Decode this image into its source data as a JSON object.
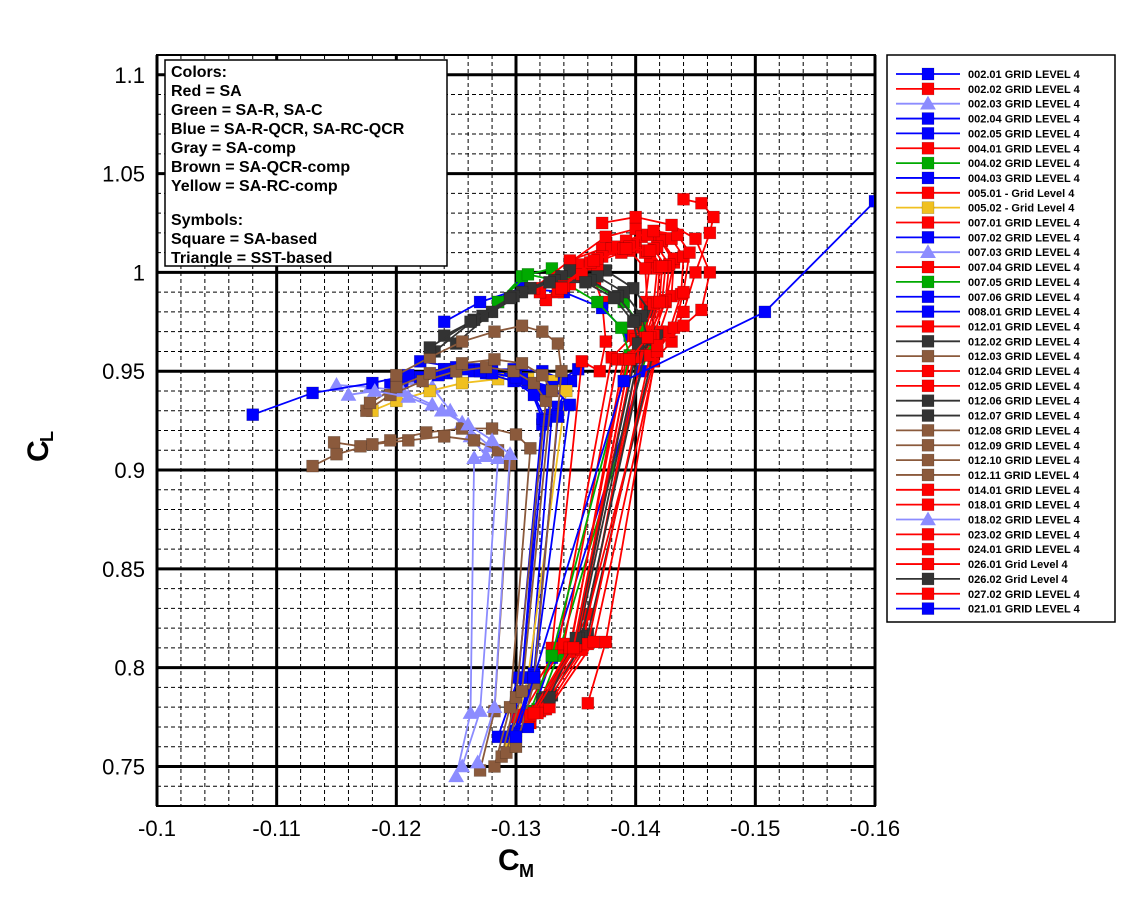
{
  "chart_data": {
    "type": "line",
    "xlabel": "C",
    "xlabel_sub": "M",
    "ylabel": "C",
    "ylabel_sub": "L",
    "xlim": [
      -0.1,
      -0.16
    ],
    "ylim": [
      0.73,
      1.11
    ],
    "x_reversed": true,
    "grid": true,
    "x_ticks": [
      -0.1,
      -0.11,
      -0.12,
      -0.13,
      -0.14,
      -0.15,
      -0.16
    ],
    "x_tick_labels": [
      "-0.1",
      "-0.11",
      "-0.12",
      "-0.13",
      "-0.14",
      "-0.15",
      "-0.16"
    ],
    "y_ticks": [
      0.75,
      0.8,
      0.85,
      0.9,
      0.95,
      1.0,
      1.05,
      1.1
    ],
    "y_tick_labels": [
      "0.75",
      "0.8",
      "0.85",
      "0.9",
      "0.95",
      "1",
      "1.05",
      "1.1"
    ],
    "legend_position": "right",
    "notes": [
      "Colors:",
      "Red = SA",
      "Green = SA-R, SA-C",
      "Blue = SA-R-QCR, SA-RC-QCR",
      "Gray = SA-comp",
      "Brown = SA-QCR-comp",
      "Yellow = SA-RC-comp",
      "",
      "Symbols:",
      "Square = SA-based",
      "Triangle = SST-based"
    ],
    "series": [
      {
        "name": "002.01 GRID LEVEL 4",
        "color": "#0000ff",
        "marker": "square",
        "x": [
          -0.1295,
          -0.1305,
          -0.1322,
          -0.1335,
          -0.1346,
          -0.1352,
          -0.1338,
          -0.1322,
          -0.1298,
          -0.127,
          -0.124
        ],
        "y": [
          0.765,
          0.795,
          0.923,
          0.932,
          0.945,
          0.951,
          0.946,
          0.95,
          0.951,
          0.951,
          0.951
        ]
      },
      {
        "name": "002.02 GRID LEVEL 4",
        "color": "#ff0000",
        "marker": "square",
        "x": [
          -0.1312,
          -0.133,
          -0.1355,
          -0.137,
          -0.1375,
          -0.1372,
          -0.1366,
          -0.1353,
          -0.134,
          -0.1325
        ],
        "y": [
          0.772,
          0.81,
          0.955,
          0.95,
          0.965,
          0.985,
          0.996,
          0.999,
          0.996,
          0.986
        ]
      },
      {
        "name": "002.03 GRID LEVEL 4",
        "color": "#8c8cff",
        "marker": "triangle",
        "x": [
          -0.125,
          -0.1262,
          -0.1265,
          -0.1275,
          -0.1262,
          -0.1245,
          -0.123,
          -0.1215,
          -0.1198
        ],
        "y": [
          0.745,
          0.777,
          0.906,
          0.907,
          0.917,
          0.93,
          0.942,
          0.946,
          0.944
        ]
      },
      {
        "name": "002.04 GRID LEVEL 4",
        "color": "#0000ff",
        "marker": "square",
        "x": [
          -0.1285,
          -0.1302,
          -0.1322,
          -0.131,
          -0.1298,
          -0.128,
          -0.126,
          -0.1242
        ],
        "y": [
          0.765,
          0.795,
          0.926,
          0.944,
          0.948,
          0.95,
          0.951,
          0.949
        ]
      },
      {
        "name": "002.05 GRID LEVEL 4",
        "color": "#0000ff",
        "marker": "square",
        "x": [
          -0.13,
          -0.1312,
          -0.133,
          -0.1322,
          -0.13,
          -0.1265,
          -0.1235,
          -0.1205
        ],
        "y": [
          0.768,
          0.795,
          0.928,
          0.94,
          0.947,
          0.95,
          0.948,
          0.944
        ]
      },
      {
        "name": "004.01 GRID LEVEL 4",
        "color": "#ff0000",
        "marker": "square",
        "x": [
          -0.1322,
          -0.136,
          -0.1415,
          -0.143,
          -0.144,
          -0.145,
          -0.1462,
          -0.1465,
          -0.1455,
          -0.144
        ],
        "y": [
          0.779,
          0.827,
          0.955,
          0.965,
          0.98,
          1.0,
          1.02,
          1.028,
          1.035,
          1.037
        ]
      },
      {
        "name": "004.02 GRID LEVEL 4",
        "color": "#00aa00",
        "marker": "square",
        "x": [
          -0.1318,
          -0.1335,
          -0.141,
          -0.1405,
          -0.139,
          -0.136,
          -0.133,
          -0.1305,
          -0.1285
        ],
        "y": [
          0.779,
          0.806,
          0.96,
          0.972,
          0.985,
          0.996,
          1.002,
          0.998,
          0.985
        ]
      },
      {
        "name": "004.03 GRID LEVEL 4",
        "color": "#0000ff",
        "marker": "square",
        "x": [
          -0.131,
          -0.133,
          -0.1405,
          -0.1395,
          -0.1372,
          -0.134,
          -0.1305,
          -0.127,
          -0.124
        ],
        "y": [
          0.77,
          0.805,
          0.95,
          0.968,
          0.982,
          0.99,
          0.992,
          0.985,
          0.975
        ]
      },
      {
        "name": "005.01 - Grid Level 4",
        "color": "#ff0000",
        "marker": "square",
        "x": [
          -0.1315,
          -0.135,
          -0.1395,
          -0.1412,
          -0.1425,
          -0.1432,
          -0.142,
          -0.14,
          -0.1375,
          -0.1345
        ],
        "y": [
          0.778,
          0.81,
          0.957,
          0.97,
          0.985,
          1.005,
          1.017,
          1.022,
          1.018,
          1.005
        ]
      },
      {
        "name": "005.02 - Grid Level 4",
        "color": "#f0c020",
        "marker": "square",
        "x": [
          -0.1295,
          -0.131,
          -0.1342,
          -0.133,
          -0.131,
          -0.1285,
          -0.1255,
          -0.1228,
          -0.12,
          -0.118
        ],
        "y": [
          0.76,
          0.795,
          0.94,
          0.945,
          0.946,
          0.946,
          0.944,
          0.94,
          0.935,
          0.93
        ]
      },
      {
        "name": "007.01 GRID LEVEL 4",
        "color": "#ff0000",
        "marker": "square",
        "x": [
          -0.13,
          -0.1335,
          -0.138,
          -0.1398,
          -0.1408,
          -0.1412,
          -0.14,
          -0.138,
          -0.1352,
          -0.132
        ],
        "y": [
          0.775,
          0.81,
          0.957,
          0.968,
          0.985,
          1.005,
          1.013,
          1.012,
          1.004,
          0.99
        ]
      },
      {
        "name": "007.02 GRID LEVEL 4",
        "color": "#0000ff",
        "marker": "square",
        "x": [
          -0.1292,
          -0.1305,
          -0.1325,
          -0.1315,
          -0.1298,
          -0.1275,
          -0.1248,
          -0.122,
          -0.1195
        ],
        "y": [
          0.765,
          0.795,
          0.925,
          0.938,
          0.945,
          0.949,
          0.95,
          0.947,
          0.943
        ]
      },
      {
        "name": "007.03 GRID LEVEL 4",
        "color": "#8c8cff",
        "marker": "triangle",
        "x": [
          -0.1255,
          -0.127,
          -0.1285,
          -0.1278,
          -0.1255,
          -0.123,
          -0.1205,
          -0.1178,
          -0.115
        ],
        "y": [
          0.75,
          0.778,
          0.906,
          0.912,
          0.924,
          0.933,
          0.94,
          0.942,
          0.943
        ]
      },
      {
        "name": "007.04 GRID LEVEL 4",
        "color": "#ff0000",
        "marker": "square",
        "x": [
          -0.1305,
          -0.134,
          -0.1385,
          -0.14,
          -0.141,
          -0.1408,
          -0.1395,
          -0.1372,
          -0.1345,
          -0.1315
        ],
        "y": [
          0.776,
          0.812,
          0.956,
          0.966,
          0.982,
          1.002,
          1.011,
          1.012,
          1.006,
          0.992
        ]
      },
      {
        "name": "007.05 GRID LEVEL 4",
        "color": "#00aa00",
        "marker": "square",
        "x": [
          -0.1312,
          -0.133,
          -0.1395,
          -0.1388,
          -0.1368,
          -0.134,
          -0.131,
          -0.1285
        ],
        "y": [
          0.778,
          0.806,
          0.958,
          0.972,
          0.985,
          0.995,
          0.999,
          0.985
        ]
      },
      {
        "name": "007.06 GRID LEVEL 4",
        "color": "#0000ff",
        "marker": "square",
        "x": [
          -0.1298,
          -0.1315,
          -0.1335,
          -0.1325,
          -0.1305,
          -0.128,
          -0.125,
          -0.122
        ],
        "y": [
          0.767,
          0.797,
          0.927,
          0.94,
          0.946,
          0.949,
          0.952,
          0.955
        ]
      },
      {
        "name": "008.01 GRID LEVEL 4",
        "color": "#0000ff",
        "marker": "square",
        "x": [
          -0.13,
          -0.1315,
          -0.1345,
          -0.133,
          -0.13,
          -0.127,
          -0.124,
          -0.121,
          -0.118,
          -0.113,
          -0.108
        ],
        "y": [
          0.766,
          0.796,
          0.933,
          0.942,
          0.947,
          0.95,
          0.951,
          0.948,
          0.944,
          0.939,
          0.928
        ]
      },
      {
        "name": "012.01 GRID LEVEL 4",
        "color": "#ff0000",
        "marker": "square",
        "x": [
          -0.1318,
          -0.1355,
          -0.1405,
          -0.142,
          -0.143,
          -0.1432,
          -0.1422,
          -0.1405,
          -0.138,
          -0.1352
        ],
        "y": [
          0.778,
          0.812,
          0.958,
          0.97,
          0.988,
          1.007,
          1.016,
          1.018,
          1.012,
          0.998
        ]
      },
      {
        "name": "012.02 GRID LEVEL 4",
        "color": "#333333",
        "marker": "square",
        "x": [
          -0.133,
          -0.136,
          -0.1418,
          -0.1412,
          -0.1398,
          -0.1375,
          -0.1345,
          -0.1312,
          -0.128,
          -0.125
        ],
        "y": [
          0.786,
          0.817,
          0.968,
          0.98,
          0.992,
          1.001,
          1.001,
          0.992,
          0.98,
          0.964
        ]
      },
      {
        "name": "012.03 GRID LEVEL 4",
        "color": "#8b5a3c",
        "marker": "square",
        "x": [
          -0.1282,
          -0.1295,
          -0.1312,
          -0.13,
          -0.128,
          -0.1255,
          -0.1225,
          -0.1195,
          -0.117,
          -0.1148
        ],
        "y": [
          0.75,
          0.78,
          0.911,
          0.918,
          0.921,
          0.921,
          0.919,
          0.915,
          0.912,
          0.914
        ]
      },
      {
        "name": "012.04 GRID LEVEL 4",
        "color": "#ff0000",
        "marker": "square",
        "x": [
          -0.132,
          -0.1355,
          -0.1402,
          -0.1415,
          -0.1425,
          -0.1428,
          -0.1418,
          -0.1398,
          -0.1372,
          -0.1345
        ],
        "y": [
          0.778,
          0.809,
          0.957,
          0.968,
          0.986,
          1.004,
          1.013,
          1.014,
          1.008,
          0.994
        ]
      },
      {
        "name": "012.05 GRID LEVEL 4",
        "color": "#ff0000",
        "marker": "square",
        "x": [
          -0.131,
          -0.1345,
          -0.139,
          -0.1405,
          -0.1415,
          -0.1418,
          -0.1408,
          -0.1388,
          -0.1362,
          -0.1335
        ],
        "y": [
          0.775,
          0.808,
          0.956,
          0.966,
          0.984,
          1.002,
          1.01,
          1.01,
          1.004,
          0.99
        ]
      },
      {
        "name": "012.06 GRID LEVEL 4",
        "color": "#333333",
        "marker": "square",
        "x": [
          -0.1325,
          -0.1355,
          -0.141,
          -0.1405,
          -0.139,
          -0.1368,
          -0.1338,
          -0.1305,
          -0.1272,
          -0.124
        ],
        "y": [
          0.785,
          0.816,
          0.966,
          0.978,
          0.99,
          0.998,
          0.998,
          0.99,
          0.978,
          0.968
        ]
      },
      {
        "name": "012.07 GRID LEVEL 4",
        "color": "#333333",
        "marker": "square",
        "x": [
          -0.1322,
          -0.1352,
          -0.1405,
          -0.14,
          -0.1385,
          -0.1362,
          -0.1332,
          -0.1298,
          -0.1265,
          -0.1232
        ],
        "y": [
          0.784,
          0.815,
          0.965,
          0.976,
          0.988,
          0.996,
          0.996,
          0.988,
          0.976,
          0.96
        ]
      },
      {
        "name": "012.08 GRID LEVEL 4",
        "color": "#8b5a3c",
        "marker": "square",
        "x": [
          -0.127,
          -0.1282,
          -0.1295,
          -0.1285,
          -0.1265,
          -0.124,
          -0.121,
          -0.118,
          -0.115,
          -0.113
        ],
        "y": [
          0.748,
          0.778,
          0.903,
          0.91,
          0.915,
          0.917,
          0.915,
          0.913,
          0.908,
          0.902
        ]
      },
      {
        "name": "012.09 GRID LEVEL 4",
        "color": "#8b5a3c",
        "marker": "square",
        "x": [
          -0.1288,
          -0.13,
          -0.1325,
          -0.1315,
          -0.1298,
          -0.1275,
          -0.125,
          -0.1222,
          -0.1195,
          -0.1175
        ],
        "y": [
          0.755,
          0.785,
          0.935,
          0.944,
          0.95,
          0.952,
          0.95,
          0.945,
          0.938,
          0.93
        ]
      },
      {
        "name": "012.10 GRID LEVEL 4",
        "color": "#8b5a3c",
        "marker": "square",
        "x": [
          -0.1292,
          -0.1305,
          -0.133,
          -0.1322,
          -0.1305,
          -0.1282,
          -0.1255,
          -0.1228,
          -0.12,
          -0.1178
        ],
        "y": [
          0.757,
          0.788,
          0.94,
          0.948,
          0.954,
          0.956,
          0.954,
          0.949,
          0.942,
          0.934
        ]
      },
      {
        "name": "012.11 GRID LEVEL 4",
        "color": "#8b5a3c",
        "marker": "square",
        "x": [
          -0.13,
          -0.1315,
          -0.1338,
          -0.1335,
          -0.1322,
          -0.1305,
          -0.1282,
          -0.1255,
          -0.1228,
          -0.12
        ],
        "y": [
          0.76,
          0.792,
          0.95,
          0.964,
          0.97,
          0.973,
          0.97,
          0.965,
          0.957,
          0.948
        ]
      },
      {
        "name": "014.01 GRID LEVEL 4",
        "color": "#ff0000",
        "marker": "square",
        "x": [
          -0.1325,
          -0.136,
          -0.1412,
          -0.1428,
          -0.1438,
          -0.144,
          -0.143,
          -0.141,
          -0.1385,
          -0.1355
        ],
        "y": [
          0.779,
          0.812,
          0.958,
          0.97,
          0.989,
          1.008,
          1.017,
          1.019,
          1.013,
          0.999
        ]
      },
      {
        "name": "018.01 GRID LEVEL 4",
        "color": "#ff0000",
        "marker": "square",
        "x": [
          -0.1328,
          -0.1365,
          -0.1418,
          -0.1432,
          -0.144,
          -0.1445,
          -0.1435,
          -0.1415,
          -0.1392,
          -0.1368
        ],
        "y": [
          0.78,
          0.813,
          0.96,
          0.972,
          0.99,
          1.01,
          1.019,
          1.021,
          1.016,
          1.004
        ]
      },
      {
        "name": "018.02 GRID LEVEL 4",
        "color": "#8c8cff",
        "marker": "triangle",
        "x": [
          -0.1268,
          -0.1282,
          -0.1295,
          -0.128,
          -0.126,
          -0.1238,
          -0.121,
          -0.1182,
          -0.116
        ],
        "y": [
          0.752,
          0.78,
          0.908,
          0.915,
          0.923,
          0.93,
          0.937,
          0.94,
          0.938
        ]
      },
      {
        "name": "023.02 GRID LEVEL 4",
        "color": "#ff0000",
        "marker": "square",
        "x": [
          -0.1318,
          -0.135,
          -0.1398,
          -0.1412,
          -0.1422,
          -0.1425,
          -0.1415,
          -0.1395,
          -0.1368,
          -0.134
        ],
        "y": [
          0.777,
          0.811,
          0.957,
          0.967,
          0.985,
          1.003,
          1.012,
          1.013,
          1.007,
          0.993
        ]
      },
      {
        "name": "024.01 GRID LEVEL 4",
        "color": "#ff0000",
        "marker": "square",
        "x": [
          -0.136,
          -0.1375,
          -0.1418,
          -0.144,
          -0.1455,
          -0.1462,
          -0.145,
          -0.143,
          -0.14,
          -0.1372
        ],
        "y": [
          0.782,
          0.813,
          0.963,
          0.973,
          0.981,
          1.0,
          1.017,
          1.024,
          1.028,
          1.025
        ]
      },
      {
        "name": "026.01 Grid Level 4",
        "color": "#ff0000",
        "marker": "square",
        "x": [
          -0.1312,
          -0.1345,
          -0.1392,
          -0.1408,
          -0.1418,
          -0.142,
          -0.141,
          -0.139,
          -0.1362,
          -0.1335
        ],
        "y": [
          0.776,
          0.81,
          0.956,
          0.967,
          0.985,
          1.003,
          1.011,
          1.012,
          1.005,
          0.991
        ]
      },
      {
        "name": "026.02 Grid Level 4",
        "color": "#333333",
        "marker": "square",
        "x": [
          -0.1328,
          -0.135,
          -0.1402,
          -0.1398,
          -0.1382,
          -0.1358,
          -0.1328,
          -0.1295,
          -0.1262,
          -0.1228
        ],
        "y": [
          0.785,
          0.815,
          0.964,
          0.975,
          0.987,
          0.995,
          0.995,
          0.987,
          0.975,
          0.962
        ]
      },
      {
        "name": "027.02 GRID LEVEL 4",
        "color": "#ff0000",
        "marker": "square",
        "x": [
          -0.1315,
          -0.1348,
          -0.1395,
          -0.141,
          -0.142,
          -0.1422,
          -0.1412,
          -0.1392,
          -0.1365,
          -0.1338
        ],
        "y": [
          0.777,
          0.81,
          0.956,
          0.967,
          0.985,
          1.003,
          1.011,
          1.012,
          1.006,
          0.992
        ]
      },
      {
        "name": "021.01 GRID LEVEL 4",
        "color": "#0000ff",
        "marker": "square",
        "x": [
          -0.13,
          -0.1315,
          -0.139,
          -0.1508,
          -0.16
        ],
        "y": [
          0.765,
          0.795,
          0.945,
          0.98,
          1.036
        ]
      }
    ]
  }
}
